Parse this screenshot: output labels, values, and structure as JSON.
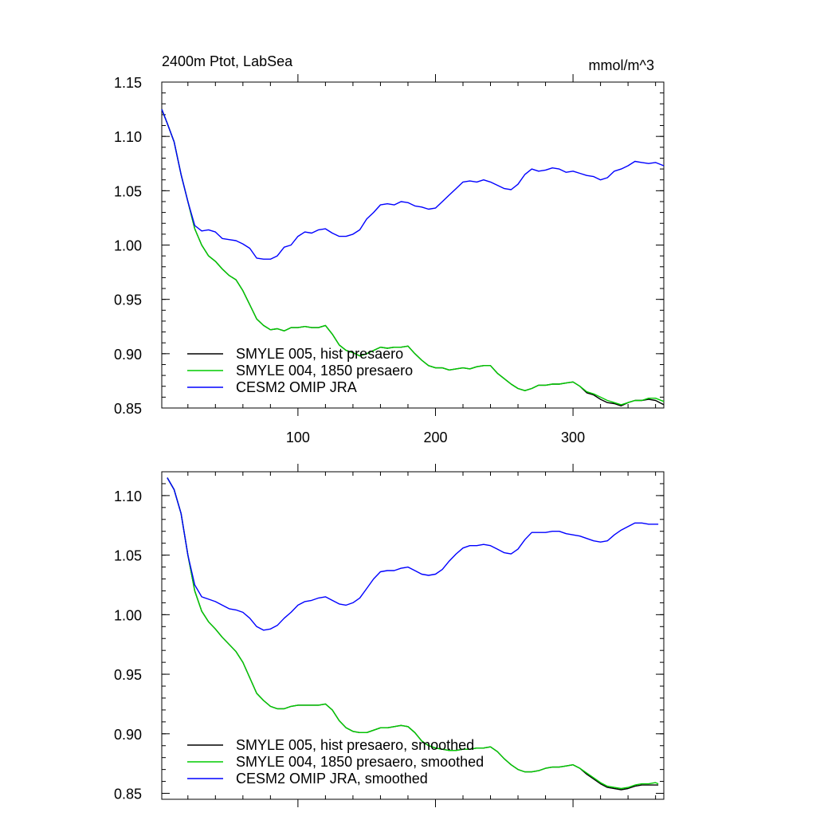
{
  "chart_data": [
    {
      "type": "line",
      "title": "2400m Ptot, LabSea",
      "units": "mmol/m^3",
      "xlim": [
        1,
        366
      ],
      "ylim": [
        0.85,
        1.15
      ],
      "x_ticks": [
        100,
        200,
        300
      ],
      "y_ticks": [
        0.85,
        0.9,
        0.95,
        1.0,
        1.05,
        1.1,
        1.15
      ],
      "y_tick_labels": [
        "0.85",
        "0.90",
        "0.95",
        "1.00",
        "1.05",
        "1.10",
        "1.15"
      ],
      "x_tick_labels": [
        "100",
        "200",
        "300"
      ],
      "legend_position": "bottom-left",
      "series": [
        {
          "name": "SMYLE 005, hist presaero",
          "color": "#000000",
          "x": [
            1,
            5,
            10,
            15,
            20,
            25,
            30,
            35,
            40,
            45,
            50,
            55,
            60,
            65,
            70,
            75,
            80,
            85,
            90,
            95,
            100,
            105,
            110,
            115,
            120,
            125,
            130,
            135,
            140,
            145,
            150,
            155,
            160,
            165,
            170,
            175,
            180,
            185,
            190,
            195,
            200,
            205,
            210,
            215,
            220,
            225,
            230,
            235,
            240,
            245,
            250,
            255,
            260,
            265,
            270,
            275,
            280,
            285,
            290,
            295,
            300,
            305,
            310,
            315,
            320,
            325,
            330,
            335,
            340,
            345,
            350,
            355,
            360,
            366
          ],
          "values": [
            1.125,
            1.112,
            1.095,
            1.065,
            1.04,
            1.015,
            1.0,
            0.99,
            0.985,
            0.978,
            0.972,
            0.968,
            0.958,
            0.945,
            0.932,
            0.926,
            0.922,
            0.923,
            0.921,
            0.924,
            0.924,
            0.925,
            0.924,
            0.924,
            0.926,
            0.918,
            0.908,
            0.903,
            0.901,
            0.898,
            0.9,
            0.903,
            0.906,
            0.905,
            0.906,
            0.906,
            0.907,
            0.9,
            0.894,
            0.889,
            0.887,
            0.887,
            0.885,
            0.886,
            0.887,
            0.886,
            0.888,
            0.889,
            0.889,
            0.882,
            0.877,
            0.872,
            0.868,
            0.866,
            0.868,
            0.871,
            0.871,
            0.872,
            0.872,
            0.873,
            0.874,
            0.87,
            0.864,
            0.862,
            0.858,
            0.855,
            0.854,
            0.852,
            0.855,
            0.857,
            0.857,
            0.858,
            0.857,
            0.853
          ]
        },
        {
          "name": "SMYLE 004, 1850 presaero",
          "color": "#00cc00",
          "x": [
            1,
            5,
            10,
            15,
            20,
            25,
            30,
            35,
            40,
            45,
            50,
            55,
            60,
            65,
            70,
            75,
            80,
            85,
            90,
            95,
            100,
            105,
            110,
            115,
            120,
            125,
            130,
            135,
            140,
            145,
            150,
            155,
            160,
            165,
            170,
            175,
            180,
            185,
            190,
            195,
            200,
            205,
            210,
            215,
            220,
            225,
            230,
            235,
            240,
            245,
            250,
            255,
            260,
            265,
            270,
            275,
            280,
            285,
            290,
            295,
            300,
            305,
            310,
            315,
            320,
            325,
            330,
            335,
            340,
            345,
            350,
            355,
            360,
            366
          ],
          "values": [
            1.125,
            1.112,
            1.095,
            1.065,
            1.04,
            1.015,
            1.0,
            0.99,
            0.985,
            0.978,
            0.972,
            0.968,
            0.958,
            0.945,
            0.932,
            0.926,
            0.922,
            0.923,
            0.921,
            0.924,
            0.924,
            0.925,
            0.924,
            0.924,
            0.926,
            0.918,
            0.908,
            0.903,
            0.901,
            0.898,
            0.9,
            0.903,
            0.906,
            0.905,
            0.906,
            0.906,
            0.907,
            0.9,
            0.894,
            0.889,
            0.887,
            0.887,
            0.885,
            0.886,
            0.887,
            0.886,
            0.888,
            0.889,
            0.889,
            0.882,
            0.877,
            0.872,
            0.868,
            0.866,
            0.868,
            0.871,
            0.871,
            0.872,
            0.872,
            0.873,
            0.874,
            0.87,
            0.865,
            0.863,
            0.86,
            0.857,
            0.855,
            0.853,
            0.855,
            0.857,
            0.857,
            0.859,
            0.859,
            0.856
          ]
        },
        {
          "name": "CESM2 OMIP JRA",
          "color": "#0000ff",
          "x": [
            1,
            5,
            10,
            15,
            20,
            25,
            30,
            35,
            40,
            45,
            50,
            55,
            60,
            65,
            70,
            75,
            80,
            85,
            90,
            95,
            100,
            105,
            110,
            115,
            120,
            125,
            130,
            135,
            140,
            145,
            150,
            155,
            160,
            165,
            170,
            175,
            180,
            185,
            190,
            195,
            200,
            205,
            210,
            215,
            220,
            225,
            230,
            235,
            240,
            245,
            250,
            255,
            260,
            265,
            270,
            275,
            280,
            285,
            290,
            295,
            300,
            305,
            310,
            315,
            320,
            325,
            330,
            335,
            340,
            345,
            350,
            355,
            360,
            366
          ],
          "values": [
            1.125,
            1.112,
            1.095,
            1.065,
            1.04,
            1.018,
            1.013,
            1.014,
            1.012,
            1.006,
            1.005,
            1.004,
            1.001,
            0.997,
            0.988,
            0.987,
            0.987,
            0.99,
            0.998,
            1.0,
            1.008,
            1.012,
            1.011,
            1.014,
            1.015,
            1.011,
            1.008,
            1.008,
            1.01,
            1.014,
            1.024,
            1.03,
            1.037,
            1.038,
            1.037,
            1.04,
            1.039,
            1.036,
            1.035,
            1.033,
            1.034,
            1.04,
            1.046,
            1.052,
            1.058,
            1.059,
            1.058,
            1.06,
            1.058,
            1.055,
            1.052,
            1.051,
            1.056,
            1.065,
            1.07,
            1.068,
            1.069,
            1.071,
            1.07,
            1.067,
            1.068,
            1.066,
            1.064,
            1.063,
            1.06,
            1.062,
            1.068,
            1.07,
            1.073,
            1.077,
            1.076,
            1.075,
            1.076,
            1.073
          ]
        }
      ]
    },
    {
      "type": "line",
      "title": "",
      "xlim": [
        1,
        366
      ],
      "ylim": [
        0.845,
        1.12
      ],
      "x_ticks": [
        100,
        200,
        300
      ],
      "y_ticks": [
        0.85,
        0.9,
        0.95,
        1.0,
        1.05,
        1.1
      ],
      "y_tick_labels": [
        "0.85",
        "0.90",
        "0.95",
        "1.00",
        "1.05",
        "1.10"
      ],
      "legend_position": "bottom-left",
      "series": [
        {
          "name": "SMYLE 005, hist presaero, smoothed",
          "color": "#000000",
          "x": [
            5,
            10,
            15,
            20,
            25,
            30,
            35,
            40,
            45,
            50,
            55,
            60,
            65,
            70,
            75,
            80,
            85,
            90,
            95,
            100,
            105,
            110,
            115,
            120,
            125,
            130,
            135,
            140,
            145,
            150,
            155,
            160,
            165,
            170,
            175,
            180,
            185,
            190,
            195,
            200,
            205,
            210,
            215,
            220,
            225,
            230,
            235,
            240,
            245,
            250,
            255,
            260,
            265,
            270,
            275,
            280,
            285,
            290,
            295,
            300,
            305,
            310,
            315,
            320,
            325,
            330,
            335,
            340,
            345,
            350,
            355,
            360,
            362
          ],
          "values": [
            1.115,
            1.105,
            1.085,
            1.05,
            1.02,
            1.003,
            0.994,
            0.988,
            0.981,
            0.975,
            0.969,
            0.96,
            0.947,
            0.934,
            0.928,
            0.923,
            0.921,
            0.921,
            0.923,
            0.924,
            0.924,
            0.924,
            0.924,
            0.925,
            0.92,
            0.911,
            0.905,
            0.902,
            0.901,
            0.901,
            0.903,
            0.905,
            0.905,
            0.906,
            0.907,
            0.906,
            0.901,
            0.894,
            0.89,
            0.888,
            0.887,
            0.886,
            0.886,
            0.887,
            0.887,
            0.888,
            0.888,
            0.889,
            0.885,
            0.879,
            0.874,
            0.87,
            0.868,
            0.868,
            0.869,
            0.871,
            0.872,
            0.872,
            0.873,
            0.874,
            0.871,
            0.866,
            0.862,
            0.858,
            0.855,
            0.854,
            0.853,
            0.854,
            0.856,
            0.857,
            0.857,
            0.857,
            0.857
          ]
        },
        {
          "name": "SMYLE 004, 1850 presaero, smoothed",
          "color": "#00cc00",
          "x": [
            5,
            10,
            15,
            20,
            25,
            30,
            35,
            40,
            45,
            50,
            55,
            60,
            65,
            70,
            75,
            80,
            85,
            90,
            95,
            100,
            105,
            110,
            115,
            120,
            125,
            130,
            135,
            140,
            145,
            150,
            155,
            160,
            165,
            170,
            175,
            180,
            185,
            190,
            195,
            200,
            205,
            210,
            215,
            220,
            225,
            230,
            235,
            240,
            245,
            250,
            255,
            260,
            265,
            270,
            275,
            280,
            285,
            290,
            295,
            300,
            305,
            310,
            315,
            320,
            325,
            330,
            335,
            340,
            345,
            350,
            355,
            360,
            362
          ],
          "values": [
            1.115,
            1.105,
            1.085,
            1.05,
            1.02,
            1.003,
            0.994,
            0.988,
            0.981,
            0.975,
            0.969,
            0.96,
            0.947,
            0.934,
            0.928,
            0.923,
            0.921,
            0.921,
            0.923,
            0.924,
            0.924,
            0.924,
            0.924,
            0.925,
            0.92,
            0.911,
            0.905,
            0.902,
            0.901,
            0.901,
            0.903,
            0.905,
            0.905,
            0.906,
            0.907,
            0.906,
            0.901,
            0.894,
            0.89,
            0.888,
            0.887,
            0.886,
            0.886,
            0.887,
            0.887,
            0.888,
            0.888,
            0.889,
            0.885,
            0.879,
            0.874,
            0.87,
            0.868,
            0.868,
            0.869,
            0.871,
            0.872,
            0.872,
            0.873,
            0.874,
            0.871,
            0.867,
            0.863,
            0.859,
            0.856,
            0.855,
            0.854,
            0.855,
            0.857,
            0.858,
            0.858,
            0.859,
            0.858
          ]
        },
        {
          "name": "CESM2 OMIP JRA, smoothed",
          "color": "#0000ff",
          "x": [
            5,
            10,
            15,
            20,
            25,
            30,
            35,
            40,
            45,
            50,
            55,
            60,
            65,
            70,
            75,
            80,
            85,
            90,
            95,
            100,
            105,
            110,
            115,
            120,
            125,
            130,
            135,
            140,
            145,
            150,
            155,
            160,
            165,
            170,
            175,
            180,
            185,
            190,
            195,
            200,
            205,
            210,
            215,
            220,
            225,
            230,
            235,
            240,
            245,
            250,
            255,
            260,
            265,
            270,
            275,
            280,
            285,
            290,
            295,
            300,
            305,
            310,
            315,
            320,
            325,
            330,
            335,
            340,
            345,
            350,
            355,
            360,
            362
          ],
          "values": [
            1.115,
            1.105,
            1.085,
            1.05,
            1.025,
            1.015,
            1.013,
            1.011,
            1.008,
            1.005,
            1.004,
            1.002,
            0.997,
            0.99,
            0.987,
            0.988,
            0.991,
            0.997,
            1.002,
            1.008,
            1.011,
            1.012,
            1.014,
            1.015,
            1.012,
            1.009,
            1.008,
            1.01,
            1.014,
            1.022,
            1.03,
            1.036,
            1.037,
            1.037,
            1.039,
            1.04,
            1.037,
            1.034,
            1.033,
            1.034,
            1.038,
            1.045,
            1.051,
            1.056,
            1.058,
            1.058,
            1.059,
            1.058,
            1.055,
            1.052,
            1.051,
            1.055,
            1.063,
            1.069,
            1.069,
            1.069,
            1.07,
            1.07,
            1.068,
            1.067,
            1.066,
            1.064,
            1.062,
            1.061,
            1.062,
            1.067,
            1.071,
            1.074,
            1.077,
            1.077,
            1.076,
            1.076,
            1.076
          ]
        }
      ]
    }
  ]
}
